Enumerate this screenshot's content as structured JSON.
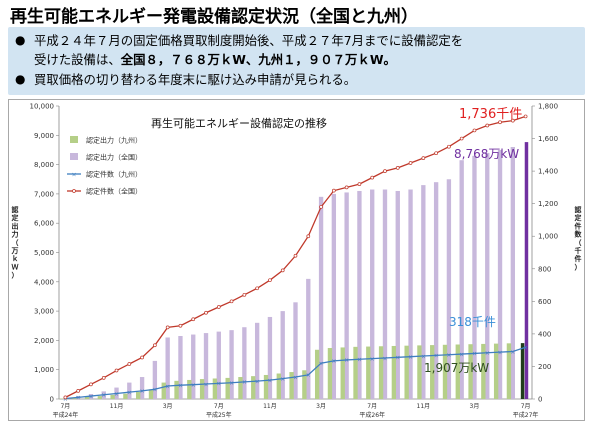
{
  "slide": {
    "title": "再生可能エネルギー発電設備認定状況（全国と九州）",
    "bullets": [
      {
        "line1": "平成２４年７月の固定価格買取制度開始後、平成２７年7月までに設備認定を",
        "line2_prefix": "受けた設備は、",
        "line2_bold": "全国８，７６８万ｋW、九州１，９０７万ｋW。"
      },
      {
        "line1": "買取価格の切り替わる年度末に駆け込み申請が見られる。"
      }
    ],
    "bullet_mark": "●"
  },
  "chart_data": {
    "type": "bar",
    "title": "再生可能エネルギー設備認定の推移",
    "ylabel_left": "認定出力（万ｋＷ）",
    "ylabel_right": "認定件数（千件）",
    "y_left_lim": [
      0,
      10000
    ],
    "y_left_ticks": [
      "0",
      "1,000",
      "2,000",
      "3,000",
      "4,000",
      "5,000",
      "6,000",
      "7,000",
      "8,000",
      "9,000",
      "10,000"
    ],
    "y_right_lim": [
      0,
      1800
    ],
    "y_right_ticks": [
      "0",
      "200",
      "400",
      "600",
      "800",
      "1,000",
      "1,200",
      "1,400",
      "1,600",
      "1,800"
    ],
    "x_month_labels": [
      "7月",
      "11月",
      "3月",
      "7月",
      "11月",
      "3月",
      "7月",
      "11月",
      "3月",
      "7月"
    ],
    "x_month_label_index": [
      0,
      4,
      8,
      12,
      16,
      20,
      24,
      28,
      32,
      36
    ],
    "x_year_labels": [
      {
        "text": "平成24年",
        "index": 0
      },
      {
        "text": "平成25年",
        "index": 12
      },
      {
        "text": "平成26年",
        "index": 24
      },
      {
        "text": "平成27年",
        "index": 36
      }
    ],
    "series": [
      {
        "name": "認定出力（九州）",
        "kind": "bar",
        "axis": "left",
        "color": "#b5cf88",
        "values": [
          15,
          40,
          70,
          100,
          140,
          180,
          240,
          330,
          560,
          620,
          650,
          680,
          700,
          720,
          750,
          780,
          820,
          870,
          920,
          980,
          1680,
          1740,
          1760,
          1780,
          1790,
          1800,
          1810,
          1820,
          1830,
          1840,
          1850,
          1860,
          1870,
          1880,
          1890,
          1900,
          1907
        ]
      },
      {
        "name": "認定出力（全国）",
        "kind": "bar",
        "axis": "left",
        "color": "#c8b8dc",
        "values": [
          50,
          100,
          170,
          260,
          390,
          560,
          750,
          1300,
          2100,
          2150,
          2200,
          2250,
          2300,
          2350,
          2450,
          2600,
          2800,
          3000,
          3300,
          4100,
          6900,
          7000,
          7050,
          7100,
          7150,
          7150,
          7100,
          7150,
          7300,
          7400,
          7500,
          8150,
          8300,
          8400,
          8500,
          8600,
          8768
        ]
      },
      {
        "name": "認定件数（九州）",
        "kind": "line",
        "axis": "right",
        "color": "#3f7fc0",
        "values": [
          3,
          10,
          18,
          26,
          34,
          42,
          50,
          60,
          80,
          85,
          88,
          92,
          96,
          100,
          105,
          110,
          116,
          125,
          135,
          148,
          220,
          234,
          240,
          244,
          248,
          252,
          256,
          260,
          264,
          268,
          272,
          276,
          280,
          284,
          288,
          292,
          318
        ]
      },
      {
        "name": "認定件数（全国）",
        "kind": "line",
        "axis": "right",
        "color": "#c0392b",
        "values": [
          10,
          50,
          90,
          130,
          175,
          215,
          255,
          330,
          440,
          450,
          490,
          530,
          565,
          600,
          640,
          680,
          730,
          790,
          880,
          1000,
          1180,
          1280,
          1300,
          1320,
          1360,
          1400,
          1420,
          1450,
          1480,
          1510,
          1550,
          1600,
          1650,
          1680,
          1700,
          1710,
          1736
        ]
      }
    ],
    "legend_position": "top-left",
    "annotations": [
      {
        "text": "1,736千件",
        "color": "#e02020",
        "size": 13
      },
      {
        "text": "8,768万kW",
        "color": "#7030a0",
        "size": 12
      },
      {
        "text": "318千件",
        "color": "#3a8fd8",
        "size": 12
      },
      {
        "text": "1,907万kW",
        "color": "#2f4f1f",
        "size": 12
      }
    ],
    "highlight_bar_colors": {
      "national": "#7030a0",
      "kyushu": "#1f3d1a"
    },
    "grid": false
  }
}
